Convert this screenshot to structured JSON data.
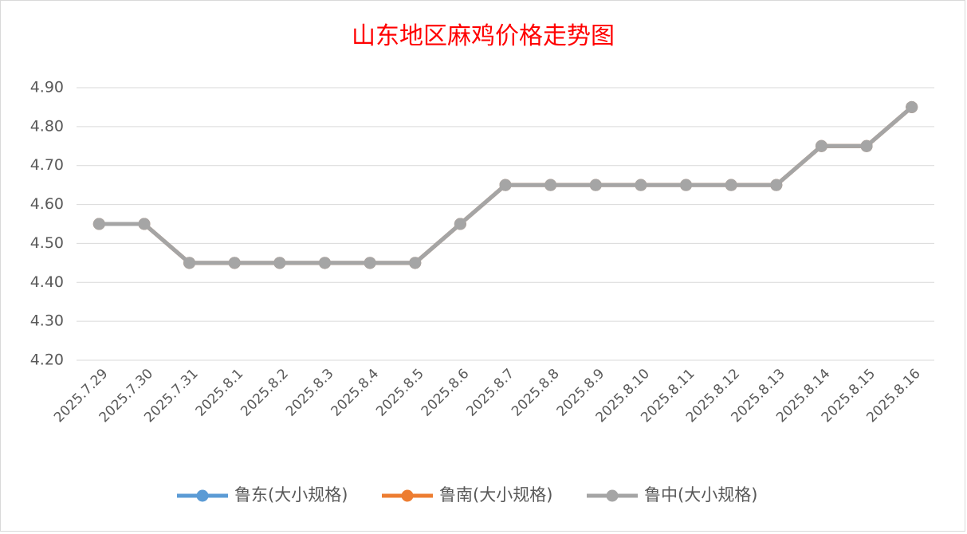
{
  "chart_data": {
    "type": "line",
    "title": "山东地区麻鸡价格走势图",
    "categories": [
      "2025.7.29",
      "2025.7.30",
      "2025.7.31",
      "2025.8.1",
      "2025.8.2",
      "2025.8.3",
      "2025.8.4",
      "2025.8.5",
      "2025.8.6",
      "2025.8.7",
      "2025.8.8",
      "2025.8.9",
      "2025.8.10",
      "2025.8.11",
      "2025.8.12",
      "2025.8.13",
      "2025.8.14",
      "2025.8.15",
      "2025.8.16"
    ],
    "series": [
      {
        "name": "鲁东(大小规格)",
        "color": "#5b9bd5",
        "values": [
          4.55,
          4.55,
          4.45,
          4.45,
          4.45,
          4.45,
          4.45,
          4.45,
          4.55,
          4.65,
          4.65,
          4.65,
          4.65,
          4.65,
          4.65,
          4.65,
          4.75,
          4.75,
          4.85
        ]
      },
      {
        "name": "鲁南(大小规格)",
        "color": "#ed7d31",
        "values": [
          4.55,
          4.55,
          4.45,
          4.45,
          4.45,
          4.45,
          4.45,
          4.45,
          4.55,
          4.65,
          4.65,
          4.65,
          4.65,
          4.65,
          4.65,
          4.65,
          4.75,
          4.75,
          4.85
        ]
      },
      {
        "name": "鲁中(大小规格)",
        "color": "#a5a5a5",
        "values": [
          4.55,
          4.55,
          4.45,
          4.45,
          4.45,
          4.45,
          4.45,
          4.45,
          4.55,
          4.65,
          4.65,
          4.65,
          4.65,
          4.65,
          4.65,
          4.65,
          4.75,
          4.75,
          4.85
        ]
      }
    ],
    "ylim": [
      4.2,
      4.9
    ],
    "yticks": [
      {
        "value": 4.2,
        "label": "4.20"
      },
      {
        "value": 4.3,
        "label": "4.30"
      },
      {
        "value": 4.4,
        "label": "4.40"
      },
      {
        "value": 4.5,
        "label": "4.50"
      },
      {
        "value": 4.6,
        "label": "4.60"
      },
      {
        "value": 4.7,
        "label": "4.70"
      },
      {
        "value": 4.8,
        "label": "4.80"
      },
      {
        "value": 4.9,
        "label": "4.90"
      }
    ],
    "grid": true
  }
}
